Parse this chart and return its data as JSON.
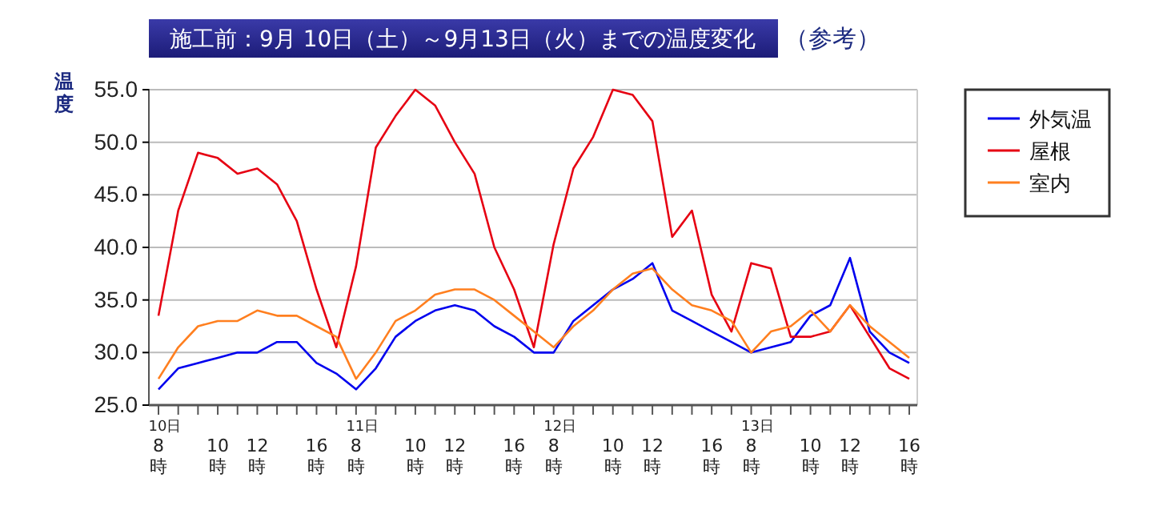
{
  "chart_data": {
    "type": "line",
    "title": "施工前：9月 10日（土）～9月13日（火）までの温度変化",
    "subtitle": "（参考）",
    "ylabel": "温度",
    "categories": [
      "10日\n8\n時",
      null,
      null,
      "10\n時",
      null,
      "12\n時",
      null,
      null,
      "16\n時",
      null,
      "11日\n8\n時",
      null,
      null,
      "10\n時",
      null,
      "12\n時",
      null,
      null,
      "16\n時",
      null,
      "12日\n8\n時",
      null,
      null,
      "10\n時",
      null,
      "12\n時",
      null,
      null,
      "16\n時",
      null,
      "13日\n8\n時",
      null,
      null,
      "10\n時",
      null,
      "12\n時",
      null,
      null,
      "16\n時"
    ],
    "series": [
      {
        "name": "外気温",
        "color": "#0000ee",
        "values": [
          26.5,
          28.5,
          29,
          29.5,
          30,
          30,
          31,
          31,
          29,
          28,
          26.5,
          28.5,
          31.5,
          33,
          34,
          34.5,
          34,
          32.5,
          31.5,
          30,
          30,
          33,
          34.5,
          36,
          37,
          38.5,
          34,
          33,
          32,
          31,
          30,
          30.5,
          31,
          33.5,
          34.5,
          39,
          32,
          30,
          29
        ]
      },
      {
        "name": "屋根",
        "color": "#e60012",
        "values": [
          33.5,
          43.5,
          49,
          48.5,
          47,
          47.5,
          46,
          42.5,
          36,
          30.5,
          38.2,
          49.5,
          52.5,
          55,
          53.5,
          50,
          47,
          40,
          36,
          30.5,
          40.3,
          47.5,
          50.5,
          55,
          54.5,
          52,
          41,
          43.5,
          35.5,
          32,
          38.5,
          38,
          31.5,
          31.5,
          32,
          34.5,
          31.5,
          28.5,
          27.5
        ]
      },
      {
        "name": "室内",
        "color": "#ff7f1f",
        "values": [
          27.5,
          30.5,
          32.5,
          33,
          33,
          34,
          33.5,
          33.5,
          32.5,
          31.5,
          27.5,
          30,
          33,
          34,
          35.5,
          36,
          36,
          35,
          33.5,
          32,
          30.5,
          32.5,
          34,
          36,
          37.5,
          38,
          36,
          34.5,
          34,
          33,
          30,
          32,
          32.5,
          34,
          32,
          34.5,
          32.5,
          31,
          29.5
        ]
      }
    ],
    "ylim": [
      25,
      55
    ],
    "yticks": [
      {
        "value": 25,
        "label": "25.0"
      },
      {
        "value": 30,
        "label": "30.0"
      },
      {
        "value": 35,
        "label": "35.0"
      },
      {
        "value": 40,
        "label": "40.0"
      },
      {
        "value": 45,
        "label": "45.0"
      },
      {
        "value": 50,
        "label": "50.0"
      },
      {
        "value": 55,
        "label": "55.0"
      }
    ],
    "grid": "y",
    "legend": "right",
    "marker": "none",
    "line_style": "solid"
  }
}
